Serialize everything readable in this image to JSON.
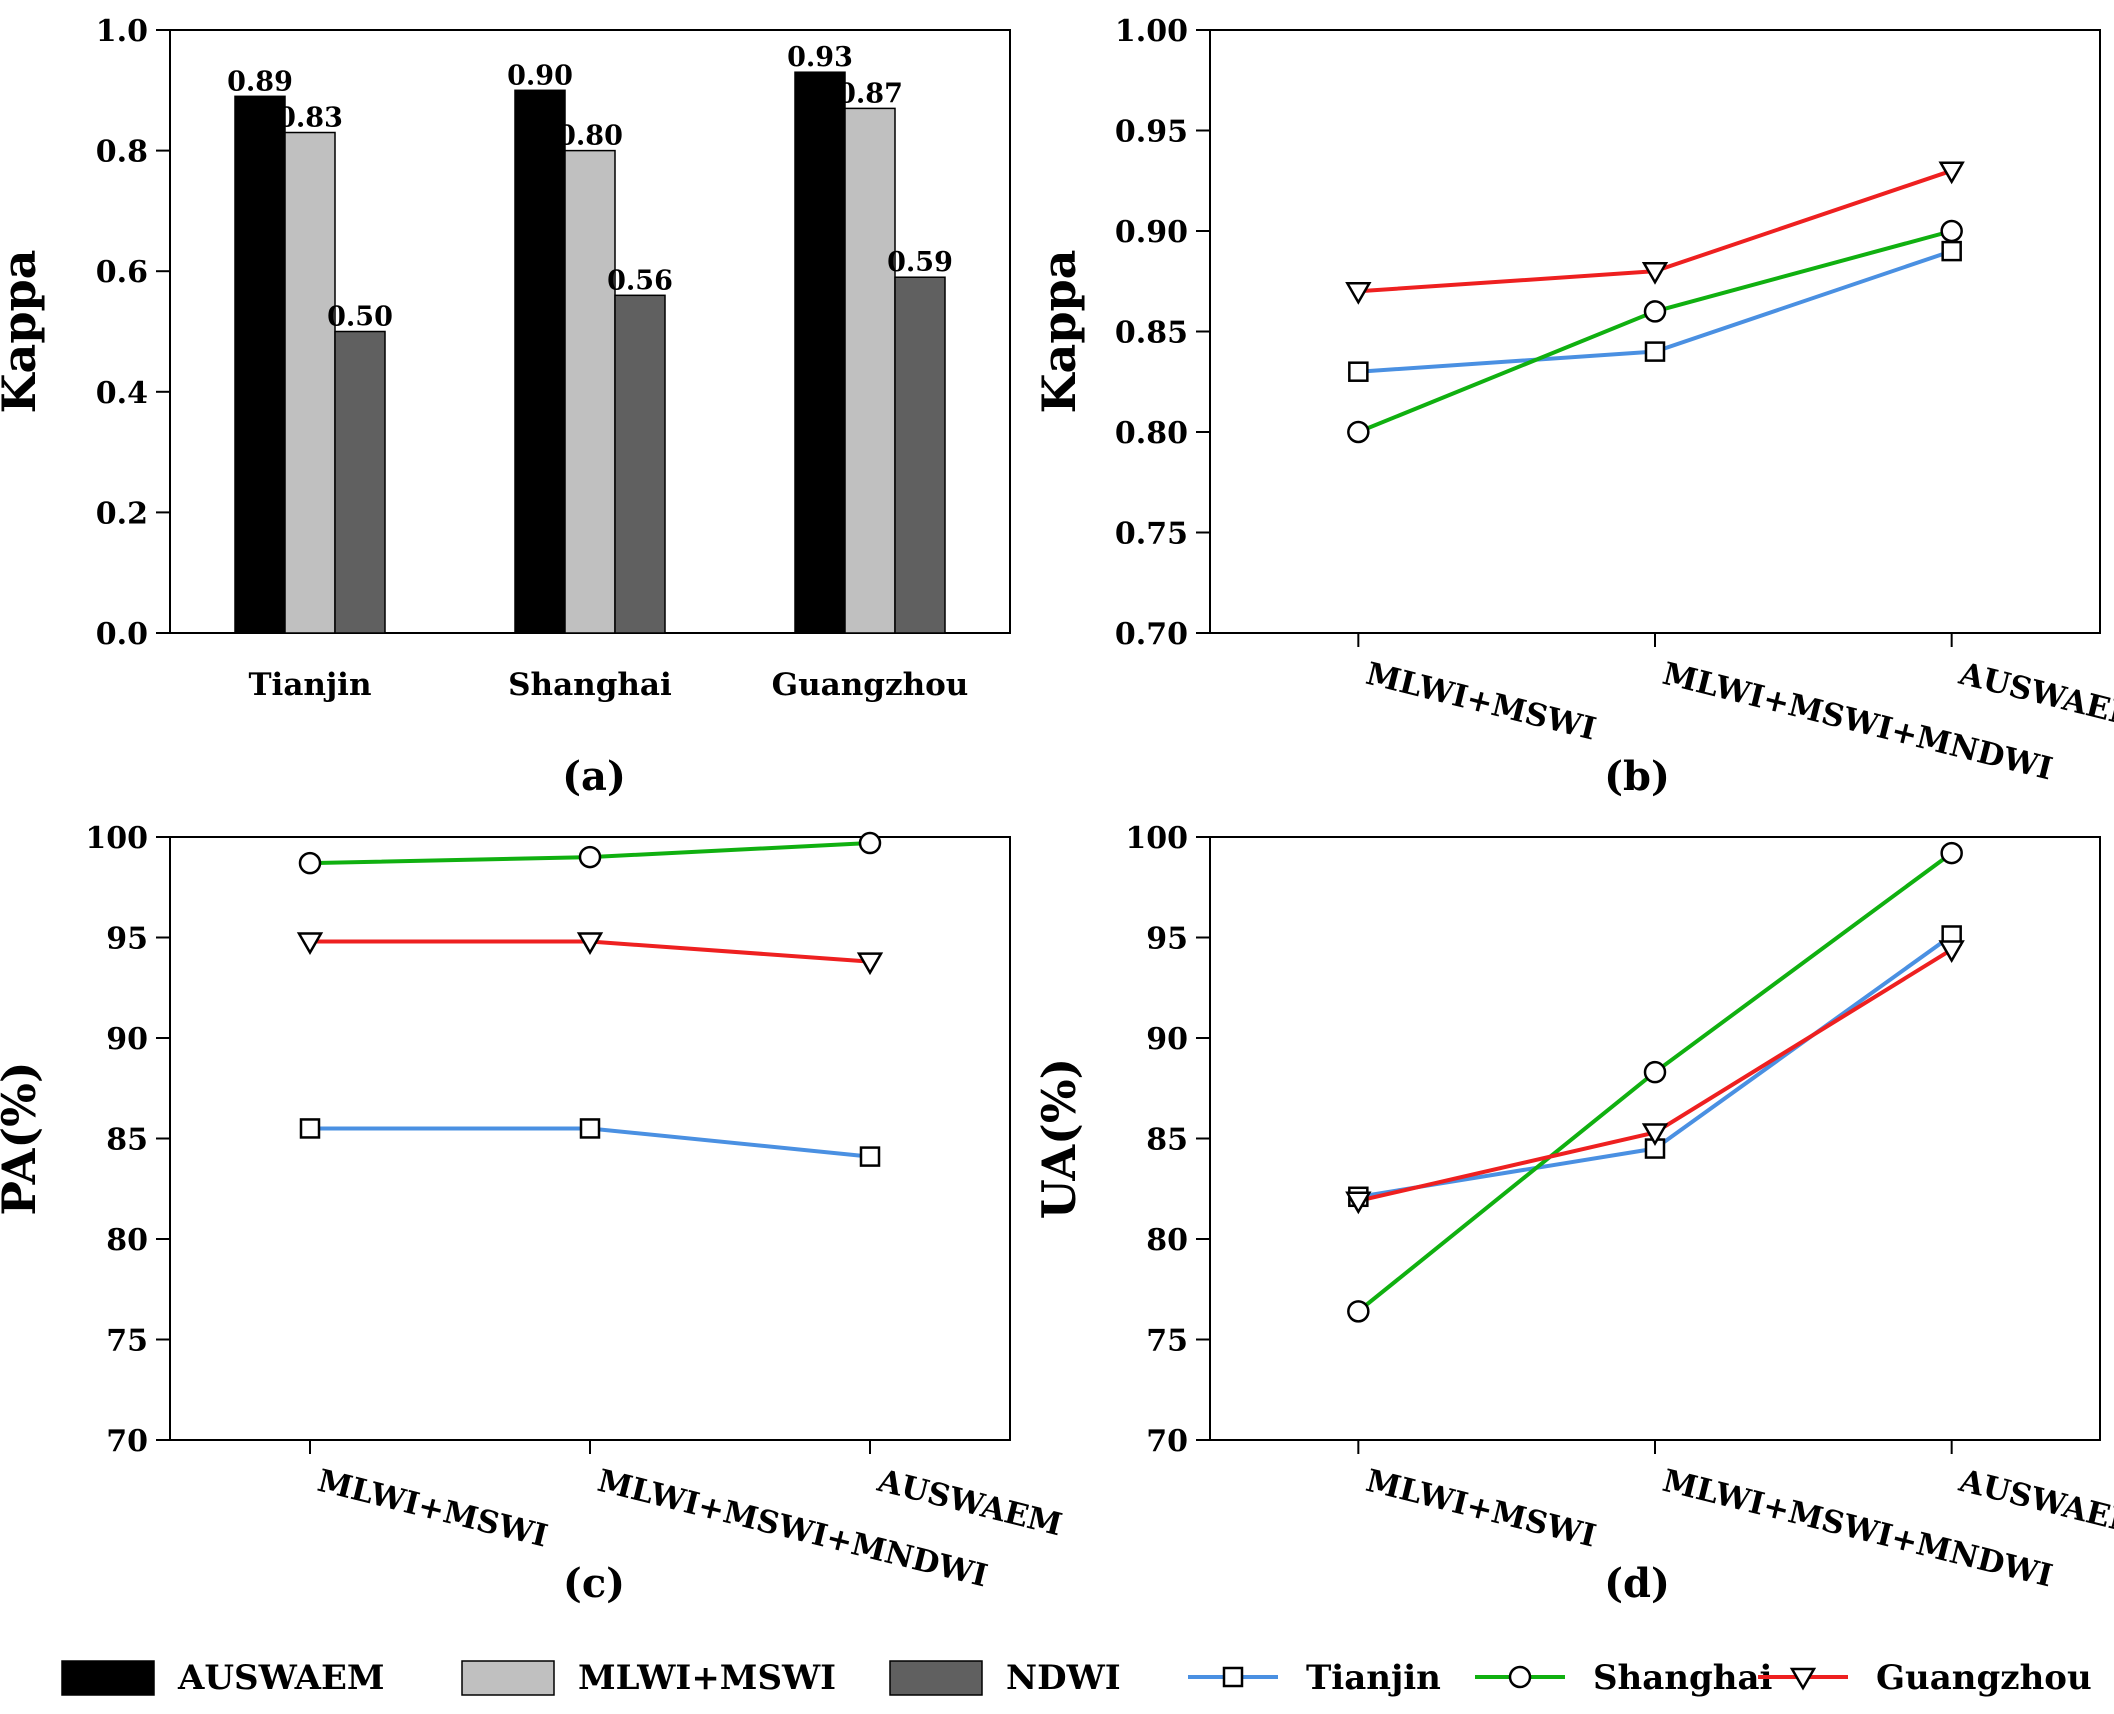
{
  "chart_data": [
    {
      "panel": "(a)",
      "type": "bar",
      "ylabel": "Kappa",
      "ylim": [
        0,
        1.0
      ],
      "yticks": [
        "0.0",
        "0.2",
        "0.4",
        "0.6",
        "0.8",
        "1.0"
      ],
      "categories": [
        "Tianjin",
        "Shanghai",
        "Guangzhou"
      ],
      "series": [
        {
          "name": "AUSWAEM",
          "color": "#000000",
          "values": [
            0.89,
            0.9,
            0.93
          ],
          "labels": [
            "0.89",
            "0.90",
            "0.93"
          ]
        },
        {
          "name": "MLWI+MSWI",
          "color": "#c0c0c0",
          "values": [
            0.83,
            0.8,
            0.87
          ],
          "labels": [
            "0.83",
            "0.80",
            "0.87"
          ]
        },
        {
          "name": "NDWI",
          "color": "#606060",
          "values": [
            0.5,
            0.56,
            0.59
          ],
          "labels": [
            "0.50",
            "0.56",
            "0.59"
          ]
        }
      ]
    },
    {
      "panel": "(b)",
      "type": "line",
      "ylabel": "Kappa",
      "ylim": [
        0.7,
        1.0
      ],
      "yticks": [
        "0.70",
        "0.75",
        "0.80",
        "0.85",
        "0.90",
        "0.95",
        "1.00"
      ],
      "categories": [
        "MLWI+MSWI",
        "MLWI+MSWI+MNDWI",
        "AUSWAEM"
      ],
      "series": [
        {
          "name": "Tianjin",
          "color": "#4a90e2",
          "marker": "square",
          "values": [
            0.83,
            0.84,
            0.89
          ]
        },
        {
          "name": "Shanghai",
          "color": "#10b010",
          "marker": "circle",
          "values": [
            0.8,
            0.86,
            0.9
          ]
        },
        {
          "name": "Guangzhou",
          "color": "#ee2020",
          "marker": "triangle",
          "values": [
            0.87,
            0.88,
            0.93
          ]
        }
      ]
    },
    {
      "panel": "(c)",
      "type": "line",
      "ylabel": "PA(%)",
      "ylim": [
        70,
        100
      ],
      "yticks": [
        "70",
        "75",
        "80",
        "85",
        "90",
        "95",
        "100"
      ],
      "categories": [
        "MLWI+MSWI",
        "MLWI+MSWI+MNDWI",
        "AUSWAEM"
      ],
      "series": [
        {
          "name": "Tianjin",
          "color": "#4a90e2",
          "marker": "square",
          "values": [
            85.5,
            85.5,
            84.1
          ]
        },
        {
          "name": "Shanghai",
          "color": "#10b010",
          "marker": "circle",
          "values": [
            98.7,
            99.0,
            99.7
          ]
        },
        {
          "name": "Guangzhou",
          "color": "#ee2020",
          "marker": "triangle",
          "values": [
            94.8,
            94.8,
            93.8
          ]
        }
      ]
    },
    {
      "panel": "(d)",
      "type": "line",
      "ylabel": "UA(%)",
      "ylim": [
        70,
        100
      ],
      "yticks": [
        "70",
        "75",
        "80",
        "85",
        "90",
        "95",
        "100"
      ],
      "categories": [
        "MLWI+MSWI",
        "MLWI+MSWI+MNDWI",
        "AUSWAEM"
      ],
      "series": [
        {
          "name": "Tianjin",
          "color": "#4a90e2",
          "marker": "square",
          "values": [
            82.1,
            84.5,
            95.1
          ]
        },
        {
          "name": "Shanghai",
          "color": "#10b010",
          "marker": "circle",
          "values": [
            76.4,
            88.3,
            99.2
          ]
        },
        {
          "name": "Guangzhou",
          "color": "#ee2020",
          "marker": "triangle",
          "values": [
            81.9,
            85.3,
            94.4
          ]
        }
      ]
    }
  ],
  "legend": {
    "bars": [
      {
        "label": "AUSWAEM",
        "color": "#000000"
      },
      {
        "label": "MLWI+MSWI",
        "color": "#c0c0c0"
      },
      {
        "label": "NDWI",
        "color": "#606060"
      }
    ],
    "lines": [
      {
        "label": "Tianjin",
        "color": "#4a90e2",
        "marker": "square"
      },
      {
        "label": "Shanghai",
        "color": "#10b010",
        "marker": "circle"
      },
      {
        "label": "Guangzhou",
        "color": "#ee2020",
        "marker": "triangle"
      }
    ]
  }
}
